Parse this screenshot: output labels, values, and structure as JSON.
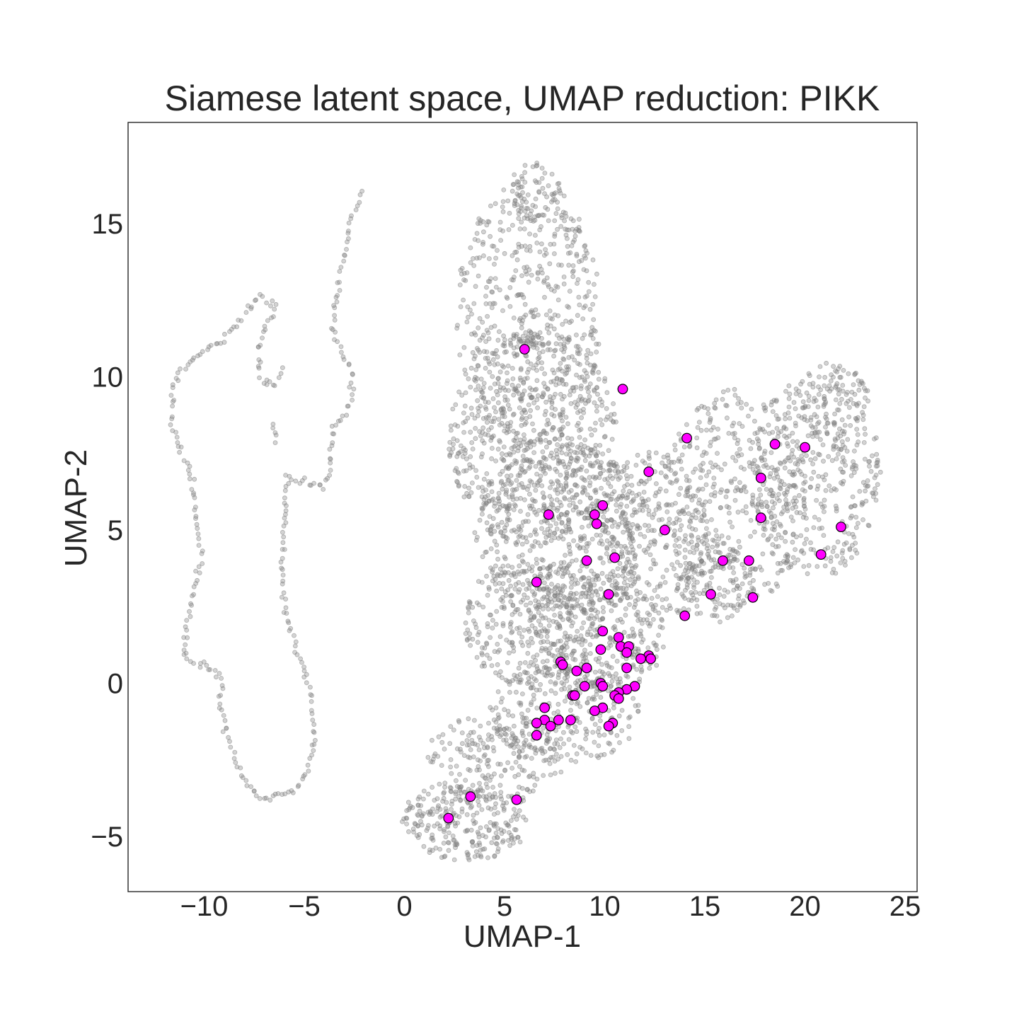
{
  "chart_data": {
    "type": "scatter",
    "title": "Siamese latent space, UMAP reduction: PIKK",
    "xlabel": "UMAP-1",
    "ylabel": "UMAP-2",
    "xlim": [
      -13.8,
      25.6
    ],
    "ylim": [
      -6.8,
      18.3
    ],
    "xticks": [
      -10,
      -5,
      0,
      5,
      10,
      15,
      20,
      25
    ],
    "xtick_labels": [
      "−10",
      "−5",
      "0",
      "5",
      "10",
      "15",
      "20",
      "25"
    ],
    "yticks": [
      -5,
      0,
      5,
      10,
      15
    ],
    "ytick_labels": [
      "−5",
      "0",
      "5",
      "10",
      "15"
    ],
    "grid": false,
    "background_colors": {
      "points": "#808080",
      "highlight": "#ff00ff",
      "highlight_edge": "#000000"
    },
    "background_regions": {
      "left_strand": [
        [
          -2.1,
          16.0
        ],
        [
          -2.7,
          15.0
        ],
        [
          -3.2,
          13.4
        ],
        [
          -3.6,
          11.5
        ],
        [
          -2.7,
          10.3
        ],
        [
          -2.6,
          9.2
        ],
        [
          -3.6,
          8.2
        ],
        [
          -3.8,
          6.8
        ],
        [
          -4.0,
          6.4
        ],
        [
          -5.9,
          6.7
        ],
        [
          -6.0,
          5.5
        ],
        [
          -6.1,
          3.0
        ],
        [
          -5.6,
          1.5
        ],
        [
          -4.8,
          0.0
        ],
        [
          -4.5,
          -1.8
        ],
        [
          -4.8,
          -2.8
        ],
        [
          -5.5,
          -3.5
        ],
        [
          -7.0,
          -3.8
        ],
        [
          -8.2,
          -3.0
        ],
        [
          -8.8,
          -1.8
        ],
        [
          -9.2,
          -0.6
        ],
        [
          -9.2,
          0.3
        ],
        [
          -10.2,
          0.6
        ],
        [
          -11.0,
          0.8
        ],
        [
          -10.8,
          2.2
        ],
        [
          -10.2,
          4.0
        ],
        [
          -10.4,
          5.5
        ],
        [
          -10.7,
          7.0
        ],
        [
          -11.6,
          8.3
        ],
        [
          -11.5,
          9.9
        ],
        [
          -10.2,
          10.8
        ],
        [
          -9.0,
          11.2
        ],
        [
          -8.0,
          12.1
        ],
        [
          -7.2,
          12.6
        ],
        [
          -6.4,
          12.3
        ],
        [
          -6.8,
          11.8
        ],
        [
          -7.3,
          11.0
        ],
        [
          -7.3,
          10.0
        ],
        [
          -6.5,
          9.7
        ],
        [
          -6.0,
          10.3
        ]
      ],
      "left_strand_spur": [
        [
          -6.6,
          8.4
        ],
        [
          -6.4,
          8.0
        ],
        [
          -6.5,
          7.7
        ]
      ]
    },
    "series": [
      {
        "x": [
          6.0,
          10.9,
          14.1,
          12.2,
          18.5,
          20.0,
          17.8,
          7.2,
          9.9,
          9.5,
          9.6,
          13.0,
          17.8,
          21.8,
          9.1,
          10.5,
          15.9,
          17.2,
          20.8,
          6.6,
          10.2,
          15.3,
          17.4,
          14.0,
          9.9,
          10.7,
          9.8,
          10.8,
          11.2,
          11.1,
          12.2,
          12.3,
          11.8,
          7.8,
          7.9,
          9.1,
          8.6,
          11.1,
          9.8,
          9.0,
          9.9,
          11.5,
          11.1,
          10.7,
          10.5,
          8.4,
          8.5,
          10.7,
          7.0,
          9.9,
          9.5,
          7.0,
          7.7,
          6.6,
          8.3,
          7.3,
          10.4,
          10.2,
          6.6,
          3.3,
          5.6,
          2.2
        ],
        "y": [
          10.9,
          9.6,
          8.0,
          6.9,
          7.8,
          7.7,
          6.7,
          5.5,
          5.8,
          5.5,
          5.2,
          5.0,
          5.4,
          5.1,
          4.0,
          4.1,
          4.0,
          4.0,
          4.2,
          3.3,
          2.9,
          2.9,
          2.8,
          2.2,
          1.7,
          1.5,
          1.1,
          1.2,
          1.2,
          1.0,
          0.9,
          0.8,
          0.8,
          0.7,
          0.6,
          0.5,
          0.4,
          0.5,
          0.0,
          -0.1,
          -0.1,
          -0.1,
          -0.2,
          -0.3,
          -0.4,
          -0.4,
          -0.4,
          -0.5,
          -0.8,
          -0.8,
          -0.9,
          -1.2,
          -1.2,
          -1.3,
          -1.2,
          -1.4,
          -1.3,
          -1.4,
          -1.7,
          -3.7,
          -3.8,
          -4.4
        ]
      }
    ]
  }
}
